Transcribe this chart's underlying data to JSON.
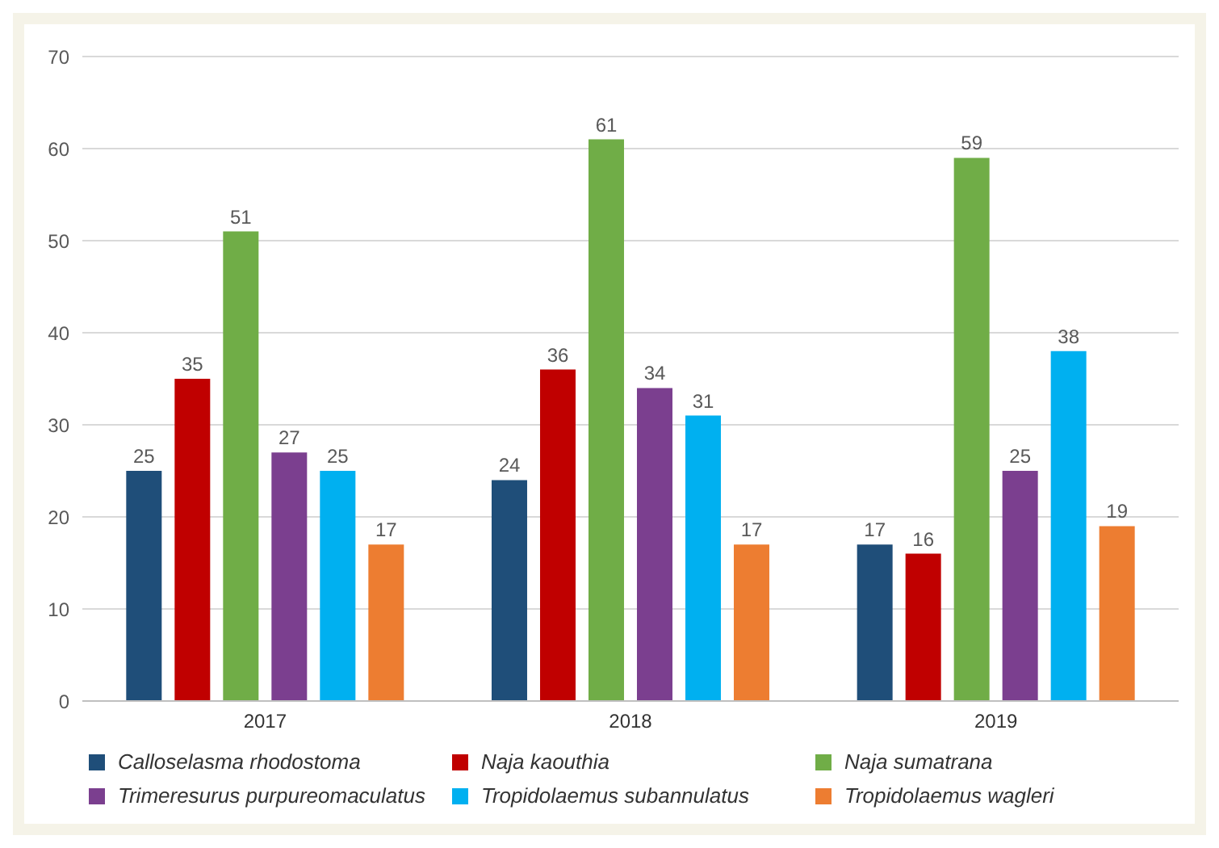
{
  "chart_data": {
    "type": "bar",
    "categories": [
      "2017",
      "2018",
      "2019"
    ],
    "series": [
      {
        "name": "Calloselasma rhodostoma",
        "color": "#1f4e79",
        "values": [
          25,
          24,
          17
        ]
      },
      {
        "name": "Naja kaouthia",
        "color": "#c00000",
        "values": [
          35,
          36,
          16
        ]
      },
      {
        "name": "Naja sumatrana",
        "color": "#70ad47",
        "values": [
          51,
          61,
          59
        ]
      },
      {
        "name": "Trimeresurus purpureomaculatus",
        "color": "#7b3f8f",
        "values": [
          27,
          34,
          25
        ]
      },
      {
        "name": "Tropidolaemus subannulatus",
        "color": "#00b0f0",
        "values": [
          25,
          31,
          38
        ]
      },
      {
        "name": "Tropidolaemus wagleri",
        "color": "#ed7d31",
        "values": [
          17,
          17,
          19
        ]
      }
    ],
    "ylim": [
      0,
      70
    ],
    "yticks": [
      0,
      10,
      20,
      30,
      40,
      50,
      60,
      70
    ],
    "grid": "y",
    "legend": "bottom",
    "data_labels": true
  }
}
